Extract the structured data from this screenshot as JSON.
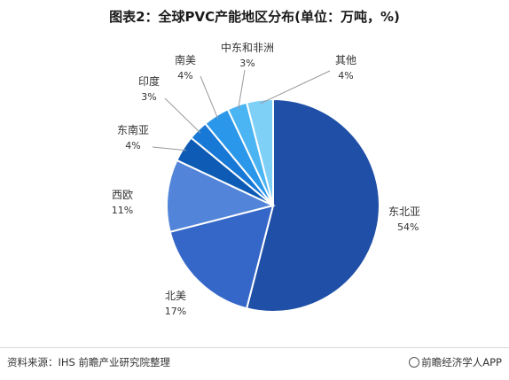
{
  "footer": {
    "source": "资料来源：IHS 前瞻产业研究院整理",
    "brand": "前瞻经济学人APP"
  },
  "chart_data": {
    "type": "pie",
    "title": "图表2：全球PVC产能地区分布(单位：万吨，%)",
    "slices": [
      {
        "label": "东北亚",
        "value": 54,
        "value_label": "54%",
        "color": "#1f4fa6"
      },
      {
        "label": "北美",
        "value": 17,
        "value_label": "17%",
        "color": "#3567c9"
      },
      {
        "label": "西欧",
        "value": 11,
        "value_label": "11%",
        "color": "#5285d9"
      },
      {
        "label": "东南亚",
        "value": 4,
        "value_label": "4%",
        "color": "#0d5bb5"
      },
      {
        "label": "印度",
        "value": 3,
        "value_label": "3%",
        "color": "#1878d6"
      },
      {
        "label": "南美",
        "value": 4,
        "value_label": "4%",
        "color": "#2a97ea"
      },
      {
        "label": "中东和非洲",
        "value": 3,
        "value_label": "3%",
        "color": "#4bb4f2"
      },
      {
        "label": "其他",
        "value": 4,
        "value_label": "4%",
        "color": "#7fd0f7"
      }
    ]
  }
}
